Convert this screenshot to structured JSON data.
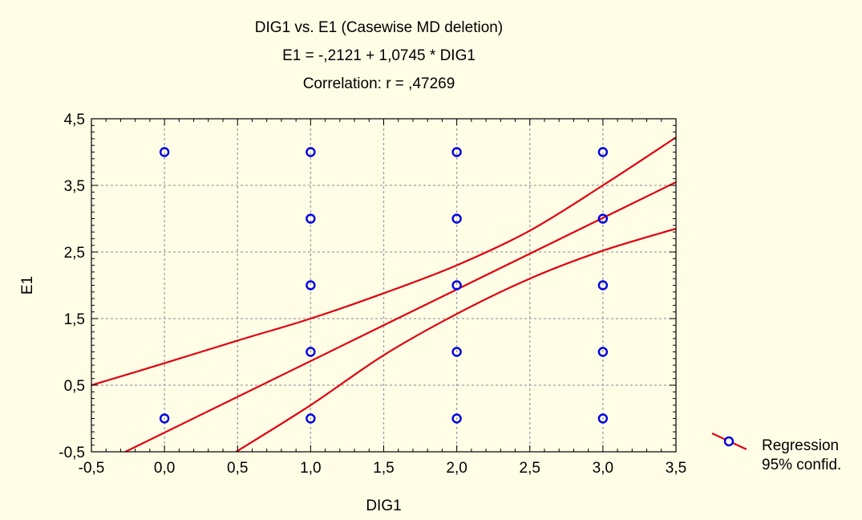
{
  "chart_data": {
    "type": "scatter",
    "title": "DIG1 vs. E1 (Casewise MD deletion)",
    "subtitle_lines": [
      "E1 = -,2121 + 1,0745 * DIG1",
      "Correlation: r = ,47269"
    ],
    "xlabel": "DIG1",
    "ylabel": "E1",
    "xlim": [
      -0.5,
      3.5
    ],
    "ylim": [
      -0.5,
      4.5
    ],
    "x_tick_values": [
      -0.5,
      0,
      0.5,
      1,
      1.5,
      2,
      2.5,
      3,
      3.5
    ],
    "x_tick_labels": [
      "-0,5",
      "0,0",
      "0,5",
      "1,0",
      "1,5",
      "2,0",
      "2,5",
      "3,0",
      "3,5"
    ],
    "y_tick_values": [
      -0.5,
      0.5,
      1.5,
      2.5,
      3.5,
      4.5
    ],
    "y_tick_labels": [
      "-0,5",
      "0,5",
      "1,5",
      "2,5",
      "3,5",
      "4,5"
    ],
    "grid": true,
    "legend_position": "right",
    "legend": [
      "Regression",
      "95% confid."
    ],
    "points": [
      {
        "x": 0,
        "y": 4
      },
      {
        "x": 0,
        "y": 0
      },
      {
        "x": 1,
        "y": 4
      },
      {
        "x": 1,
        "y": 3
      },
      {
        "x": 1,
        "y": 2
      },
      {
        "x": 1,
        "y": 1
      },
      {
        "x": 1,
        "y": 0
      },
      {
        "x": 2,
        "y": 4
      },
      {
        "x": 2,
        "y": 3
      },
      {
        "x": 2,
        "y": 2
      },
      {
        "x": 2,
        "y": 1
      },
      {
        "x": 2,
        "y": 0
      },
      {
        "x": 3,
        "y": 4
      },
      {
        "x": 3,
        "y": 3
      },
      {
        "x": 3,
        "y": 2
      },
      {
        "x": 3,
        "y": 1
      },
      {
        "x": 3,
        "y": 0
      }
    ],
    "regression": {
      "intercept": -0.2121,
      "slope": 1.0745
    },
    "confidence_upper": [
      {
        "x": -0.5,
        "y": 0.5
      },
      {
        "x": 0.0,
        "y": 0.83
      },
      {
        "x": 0.5,
        "y": 1.17
      },
      {
        "x": 1.0,
        "y": 1.5
      },
      {
        "x": 1.5,
        "y": 1.88
      },
      {
        "x": 2.0,
        "y": 2.3
      },
      {
        "x": 2.5,
        "y": 2.82
      },
      {
        "x": 3.0,
        "y": 3.5
      },
      {
        "x": 3.5,
        "y": 4.22
      }
    ],
    "confidence_lower": [
      {
        "x": 0.49,
        "y": -0.5
      },
      {
        "x": 1.0,
        "y": 0.2
      },
      {
        "x": 1.5,
        "y": 0.95
      },
      {
        "x": 2.0,
        "y": 1.57
      },
      {
        "x": 2.5,
        "y": 2.1
      },
      {
        "x": 3.0,
        "y": 2.52
      },
      {
        "x": 3.5,
        "y": 2.85
      }
    ],
    "colors": {
      "background": "#fffde6",
      "line": "#e0000f",
      "marker": "#0000e6",
      "grid": "#a0a0a0"
    }
  }
}
